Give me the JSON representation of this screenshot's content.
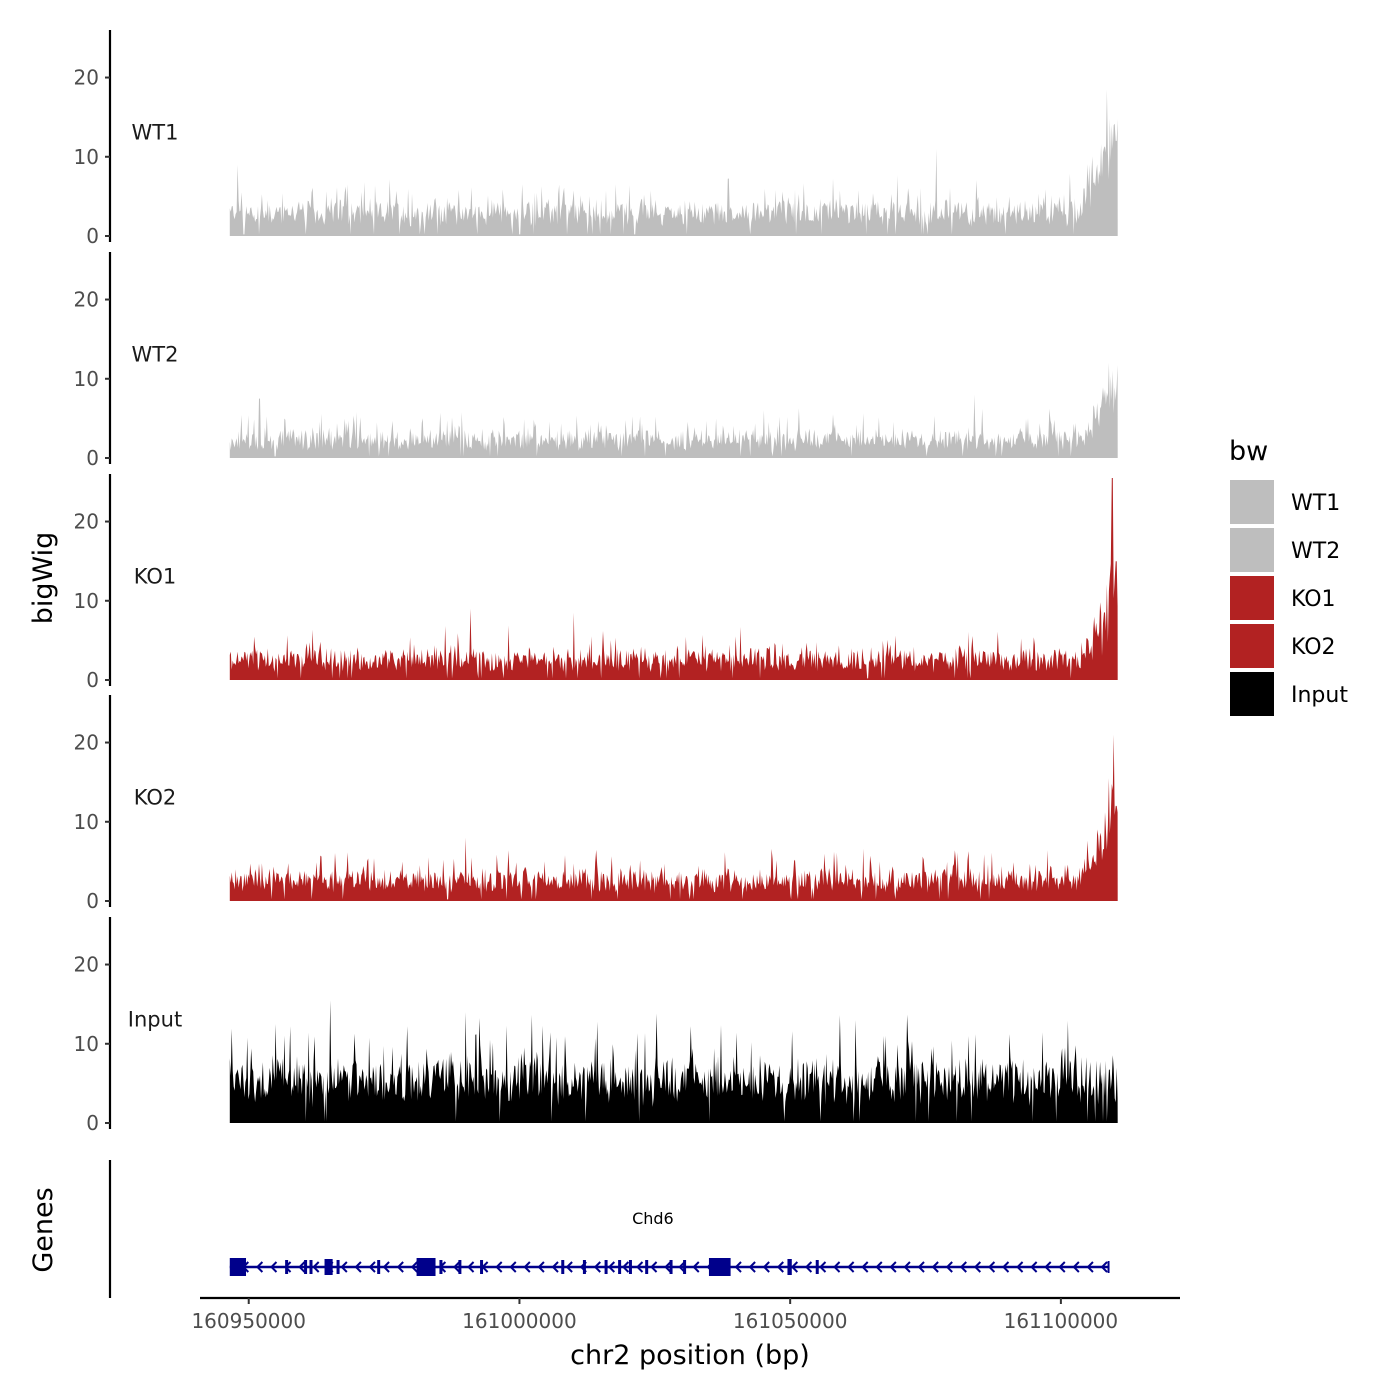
{
  "chart_data": {
    "type": "area",
    "title": "",
    "ylabel": "bigWig",
    "xlabel": "chr2 position (bp)",
    "genes_label": "Genes",
    "ylim": [
      0,
      26
    ],
    "yticks": [
      0,
      10,
      20
    ],
    "xlim": [
      160941000,
      161122000
    ],
    "xticks": [
      160950000,
      161000000,
      161050000,
      161100000
    ],
    "xtick_labels": [
      "160950000",
      "161000000",
      "161050000",
      "161100000"
    ],
    "data_range": [
      160946500,
      161110500
    ],
    "tracks": [
      {
        "name": "WT1",
        "color": "#bebebe",
        "baseline": 3,
        "noise": 2.6,
        "spikes": [
          [
            160948000,
            9
          ],
          [
            161077000,
            11
          ],
          [
            161108500,
            18.5
          ],
          [
            161109800,
            14
          ],
          [
            161110200,
            12
          ]
        ],
        "end_rise": [
          161103000,
          9
        ]
      },
      {
        "name": "WT2",
        "color": "#bebebe",
        "baseline": 2.3,
        "noise": 2.2,
        "spikes": [
          [
            160952000,
            7.5
          ],
          [
            161084000,
            8
          ],
          [
            161108800,
            12
          ],
          [
            161109600,
            11
          ]
        ],
        "end_rise": [
          161104000,
          7
        ]
      },
      {
        "name": "KO1",
        "color": "#b22222",
        "baseline": 2.6,
        "noise": 2.3,
        "spikes": [
          [
            160991000,
            9
          ],
          [
            161010000,
            8.5
          ],
          [
            161109500,
            25.5
          ],
          [
            161110200,
            15
          ]
        ],
        "end_rise": [
          161105000,
          11
        ]
      },
      {
        "name": "KO2",
        "color": "#b22222",
        "baseline": 2.6,
        "noise": 2.3,
        "spikes": [
          [
            160990000,
            8
          ],
          [
            161108800,
            15.5
          ],
          [
            161109800,
            21
          ],
          [
            161110200,
            12
          ]
        ],
        "end_rise": [
          161103500,
          9
        ]
      },
      {
        "name": "Input",
        "color": "#000000",
        "baseline": 5.5,
        "noise": 4.5,
        "spikes": [
          [
            160965000,
            15.5
          ],
          [
            160955000,
            12.5
          ],
          [
            160990000,
            14
          ],
          [
            161062000,
            13
          ]
        ],
        "end_rise": null
      }
    ],
    "legend": {
      "title": "bw",
      "position": "right",
      "entries": [
        {
          "label": "WT1",
          "color": "#bebebe"
        },
        {
          "label": "WT2",
          "color": "#bebebe"
        },
        {
          "label": "KO1",
          "color": "#b22222"
        },
        {
          "label": "KO2",
          "color": "#b22222"
        },
        {
          "label": "Input",
          "color": "#000000"
        }
      ]
    },
    "gene": {
      "name": "Chd6",
      "strand": "-",
      "start": 160946500,
      "end": 161108800,
      "color": "#00008b",
      "big_exons": [
        [
          160946500,
          160949500
        ],
        [
          160981000,
          160984500
        ],
        [
          161035000,
          161039000
        ]
      ],
      "medium_exons": [
        [
          160964000,
          160965500
        ],
        [
          161049500,
          161050300
        ]
      ],
      "small_exons": [
        160957000,
        160960500,
        160961500,
        160966500,
        160974000,
        160985500,
        160989000,
        160993000,
        161008000,
        161012000,
        161016000,
        161018500,
        161020500,
        161023500,
        161028000,
        161030500,
        161055000
      ]
    }
  }
}
